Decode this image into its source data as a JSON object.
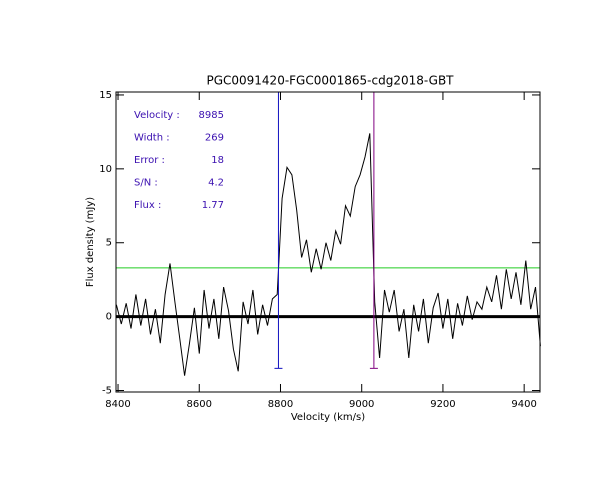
{
  "chart_data": {
    "type": "line",
    "title": "PGC0091420-FGC0001865-cdg2018-GBT",
    "xlabel": "Velocity (km/s)",
    "ylabel": "Flux density (mJy)",
    "xlim": [
      8395,
      9439
    ],
    "ylim": [
      -5.1,
      15.2
    ],
    "xticks": [
      8400,
      8600,
      8800,
      9000,
      9200,
      9400
    ],
    "yticks": [
      -5,
      0,
      5,
      10,
      15
    ],
    "annotations": [
      {
        "label": "Velocity :",
        "value": 8985
      },
      {
        "label": "Width :",
        "value": 269
      },
      {
        "label": "Error :",
        "value": 18
      },
      {
        "label": "S/N :",
        "value": 4.2
      },
      {
        "label": "Flux :",
        "value": 1.77
      }
    ],
    "annotation_color": "#3a0fb0",
    "hlines": [
      {
        "y": 3.3,
        "color": "#22cc22",
        "width": 1
      },
      {
        "y": 0,
        "color": "#000000",
        "width": 3
      }
    ],
    "vlines": [
      {
        "x": 8795,
        "color": "#1010c0"
      },
      {
        "x": 9030,
        "color": "#800080"
      }
    ],
    "vline_bottom": -3.5,
    "series": [
      {
        "color": "#000000",
        "x": [
          8396,
          8408,
          8420,
          8432,
          8444,
          8456,
          8468,
          8480,
          8492,
          8504,
          8516,
          8528,
          8540,
          8552,
          8564,
          8576,
          8588,
          8600,
          8612,
          8624,
          8636,
          8648,
          8660,
          8672,
          8684,
          8696,
          8708,
          8720,
          8732,
          8744,
          8756,
          8768,
          8780,
          8792,
          8804,
          8816,
          8828,
          8840,
          8852,
          8864,
          8876,
          8888,
          8900,
          8912,
          8924,
          8936,
          8948,
          8960,
          8972,
          8984,
          8996,
          9008,
          9020,
          9032,
          9044,
          9056,
          9068,
          9080,
          9092,
          9104,
          9116,
          9128,
          9140,
          9152,
          9164,
          9176,
          9188,
          9200,
          9212,
          9224,
          9236,
          9248,
          9260,
          9272,
          9284,
          9296,
          9308,
          9320,
          9332,
          9344,
          9356,
          9368,
          9380,
          9392,
          9404,
          9416,
          9428,
          9440
        ],
        "values": [
          0.8,
          -0.5,
          0.9,
          -0.8,
          1.5,
          -0.6,
          1.2,
          -1.2,
          0.5,
          -1.8,
          1.5,
          3.6,
          1.0,
          -1.5,
          -4.0,
          -1.8,
          0.6,
          -2.5,
          1.8,
          -0.8,
          1.2,
          -1.5,
          2.0,
          0.4,
          -2.2,
          -3.7,
          1.0,
          -0.5,
          1.8,
          -1.2,
          0.8,
          -0.6,
          1.2,
          1.5,
          8.0,
          10.1,
          9.6,
          7.2,
          4.0,
          5.2,
          3.0,
          4.6,
          3.2,
          5.0,
          3.8,
          5.8,
          4.9,
          7.5,
          6.8,
          8.8,
          9.6,
          10.8,
          12.4,
          1.0,
          -2.8,
          1.8,
          0.3,
          1.8,
          -1.0,
          0.5,
          -2.8,
          0.8,
          -1.0,
          1.2,
          -1.8,
          0.6,
          1.6,
          -0.8,
          1.2,
          -1.5,
          0.9,
          -0.6,
          1.4,
          -0.2,
          1.0,
          0.5,
          2.0,
          1.0,
          2.8,
          0.5,
          3.2,
          1.2,
          3.0,
          0.8,
          3.8,
          0.5,
          2.0,
          -2.0
        ]
      }
    ]
  }
}
